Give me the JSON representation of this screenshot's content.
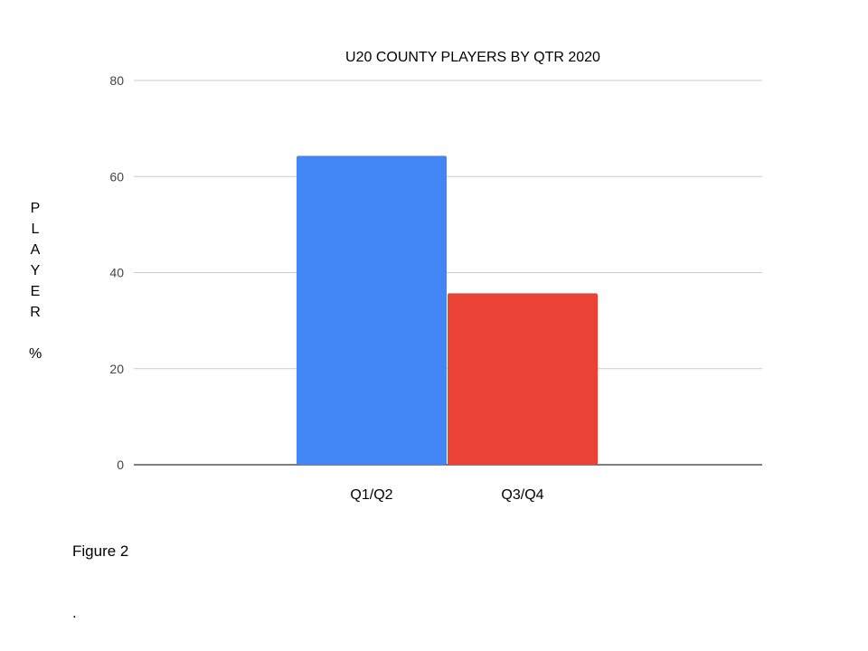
{
  "chart_data": {
    "type": "bar",
    "title": "U20 COUNTY PLAYERS BY QTR 2020",
    "categories": [
      "Q1/Q2",
      "Q3/Q4"
    ],
    "values": [
      64.3,
      35.7
    ],
    "colors": [
      "#4285f4",
      "#ea4335"
    ],
    "ylabel_letters": [
      "P",
      "L",
      "A",
      "Y",
      "E",
      "R",
      "",
      "%"
    ],
    "xlabel": "",
    "ylim": [
      0,
      80
    ],
    "yticks": [
      "0",
      "20",
      "40",
      "60",
      "80"
    ],
    "grid": true,
    "legend": "none"
  },
  "caption": "Figure 2",
  "trailing_mark": "."
}
